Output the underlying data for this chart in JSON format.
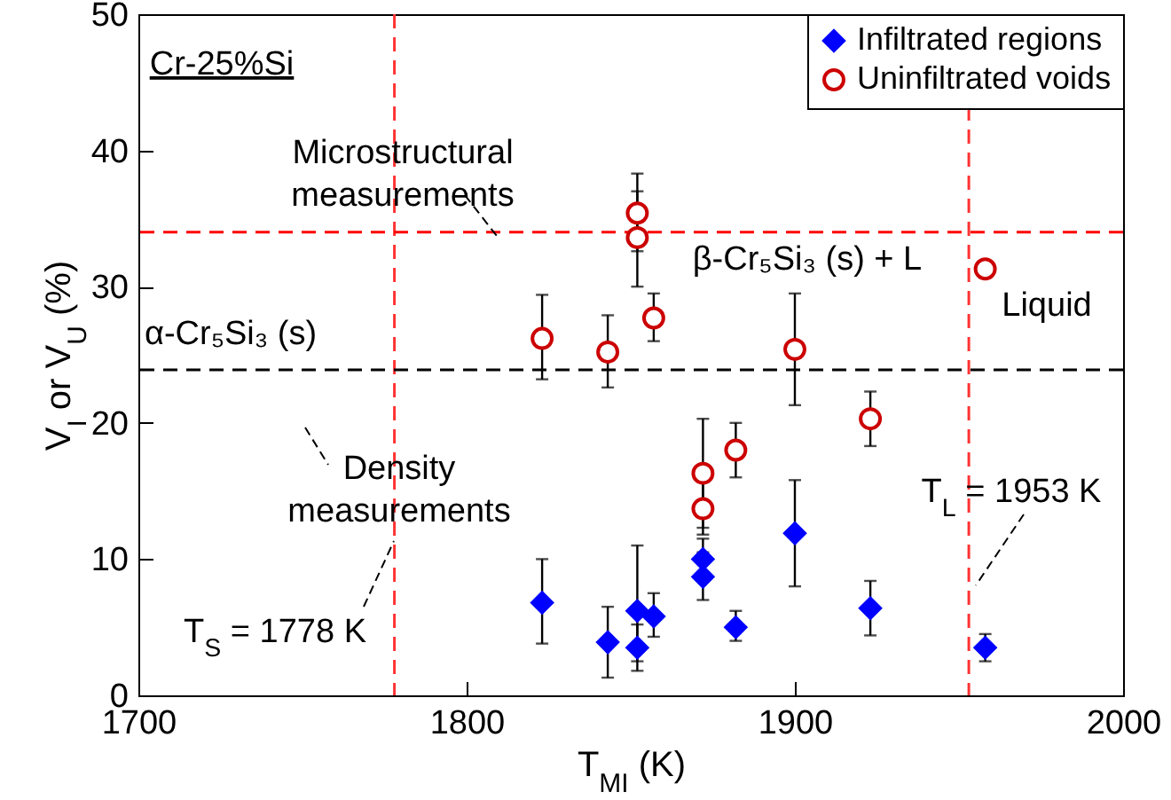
{
  "chart_data": {
    "type": "scatter",
    "xlabel": "T$_{MI}$ (K)",
    "ylabel": "V$_{I}$ or V$_{U}$ (%)",
    "xlim": [
      1700,
      2000
    ],
    "xticks": [
      1700,
      1800,
      1900,
      2000
    ],
    "ylim": [
      0,
      50
    ],
    "yticks": [
      0,
      10,
      20,
      30,
      40,
      50
    ],
    "grid": false,
    "legend": "top right",
    "series": [
      {
        "name": "Infiltrated regions",
        "color": "#0000ff",
        "marker": "diamond",
        "x": [
          1823,
          1843,
          1852,
          1852,
          1857,
          1872,
          1872,
          1882,
          1900,
          1923,
          1958
        ],
        "values": [
          6.8,
          3.9,
          6.2,
          3.5,
          5.8,
          10,
          8.7,
          5,
          11.9,
          6.4,
          3.5
        ],
        "errors": [
          [
            3.8,
            10
          ],
          [
            1.3,
            6.5
          ],
          [
            2.5,
            11
          ],
          [
            1.8,
            5.2
          ],
          [
            4.3,
            7.5
          ],
          [
            8.5,
            11.5
          ],
          [
            7,
            10.5
          ],
          [
            4,
            6.2
          ],
          [
            8,
            15.8
          ],
          [
            4.4,
            8.4
          ],
          [
            2.5,
            4.5
          ]
        ]
      },
      {
        "name": "Uninfiltrated voids",
        "color": "#cc0000",
        "marker": "circle",
        "x": [
          1823,
          1843,
          1852,
          1852,
          1857,
          1872,
          1872,
          1882,
          1900,
          1923,
          1958
        ],
        "values": [
          26.2,
          25.2,
          35.4,
          33.6,
          27.7,
          16.3,
          13.7,
          18,
          25.4,
          20.3,
          31.3
        ],
        "errors": [
          [
            23.2,
            29.4
          ],
          [
            22.6,
            27.9
          ],
          [
            32.6,
            38.3
          ],
          [
            30,
            37
          ],
          [
            26,
            29.5
          ],
          [
            12.3,
            20.3
          ],
          [
            11.8,
            15.8
          ],
          [
            16,
            20
          ],
          [
            21.3,
            29.5
          ],
          [
            18.3,
            22.3
          ],
          null
        ]
      }
    ],
    "ref_lines": [
      {
        "axis": "x",
        "value": 1778,
        "color": "#ff3333",
        "line_style": "dashed"
      },
      {
        "axis": "x",
        "value": 1953,
        "color": "#ff3333",
        "line_style": "dashed"
      },
      {
        "axis": "y",
        "value": 34,
        "color": "#ff0000",
        "line_style": "dashed"
      },
      {
        "axis": "y",
        "value": 23.9,
        "color": "#000000",
        "line_style": "dashed"
      }
    ],
    "annotations": [
      "Cr-25%Si",
      "Microstructural measurements",
      "α-Cr₅Si₃ (s)",
      "β-Cr₅Si₃ (s) + L",
      "Liquid",
      "Density measurements",
      "T$_{S}$ = 1778 K",
      "T$_{L}$ = 1953 K"
    ]
  }
}
